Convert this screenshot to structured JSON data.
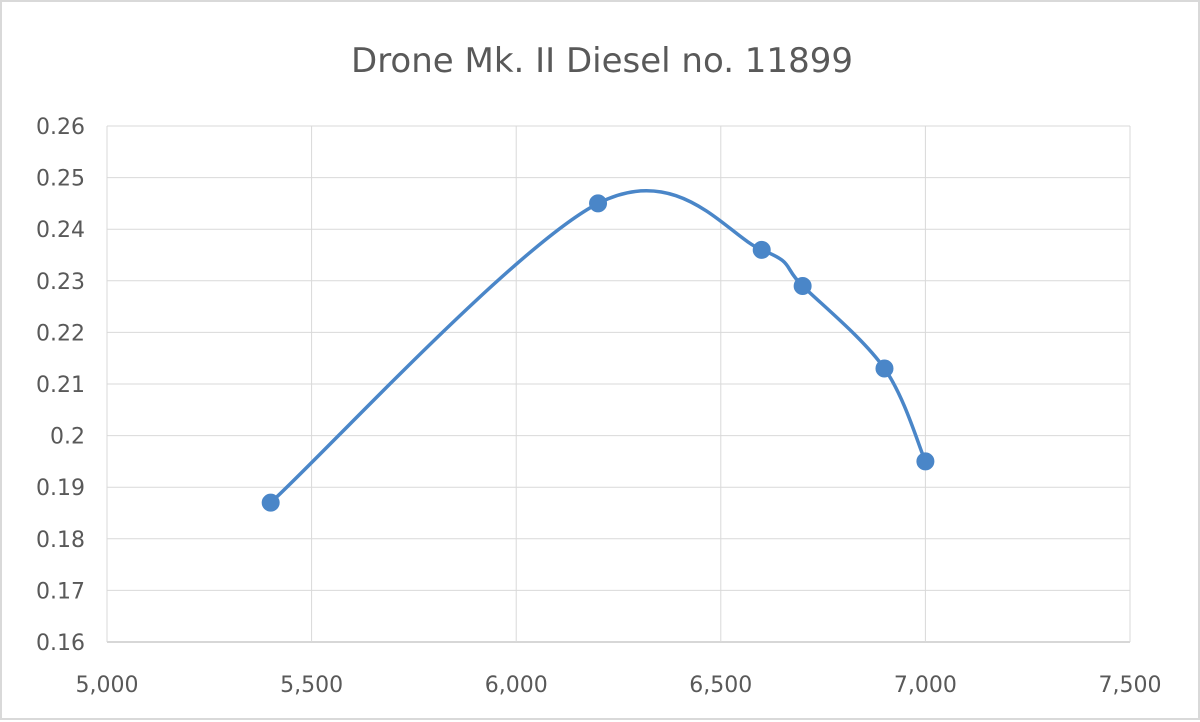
{
  "chart_data": {
    "type": "scatter",
    "title": "Drone Mk. II Diesel no. 11899",
    "xlabel": "",
    "ylabel": "",
    "xlim": [
      5000,
      7500
    ],
    "ylim": [
      0.16,
      0.26
    ],
    "x_ticks": [
      "5,000",
      "5,500",
      "6,000",
      "6,500",
      "7,000",
      "7,500"
    ],
    "x_tick_values": [
      5000,
      5500,
      6000,
      6500,
      7000,
      7500
    ],
    "y_ticks": [
      "0.16",
      "0.17",
      "0.18",
      "0.19",
      "0.2",
      "0.21",
      "0.22",
      "0.23",
      "0.24",
      "0.25",
      "0.26"
    ],
    "y_tick_values": [
      0.16,
      0.17,
      0.18,
      0.19,
      0.2,
      0.21,
      0.22,
      0.23,
      0.24,
      0.25,
      0.26
    ],
    "grid": true,
    "legend": "none",
    "line_style": "smoothed",
    "series": [
      {
        "color": "#4a86c8",
        "points": [
          {
            "x": 5400,
            "y": 0.187
          },
          {
            "x": 6200,
            "y": 0.245
          },
          {
            "x": 6600,
            "y": 0.236
          },
          {
            "x": 6700,
            "y": 0.229
          },
          {
            "x": 6900,
            "y": 0.213
          },
          {
            "x": 7000,
            "y": 0.195
          }
        ]
      }
    ]
  }
}
